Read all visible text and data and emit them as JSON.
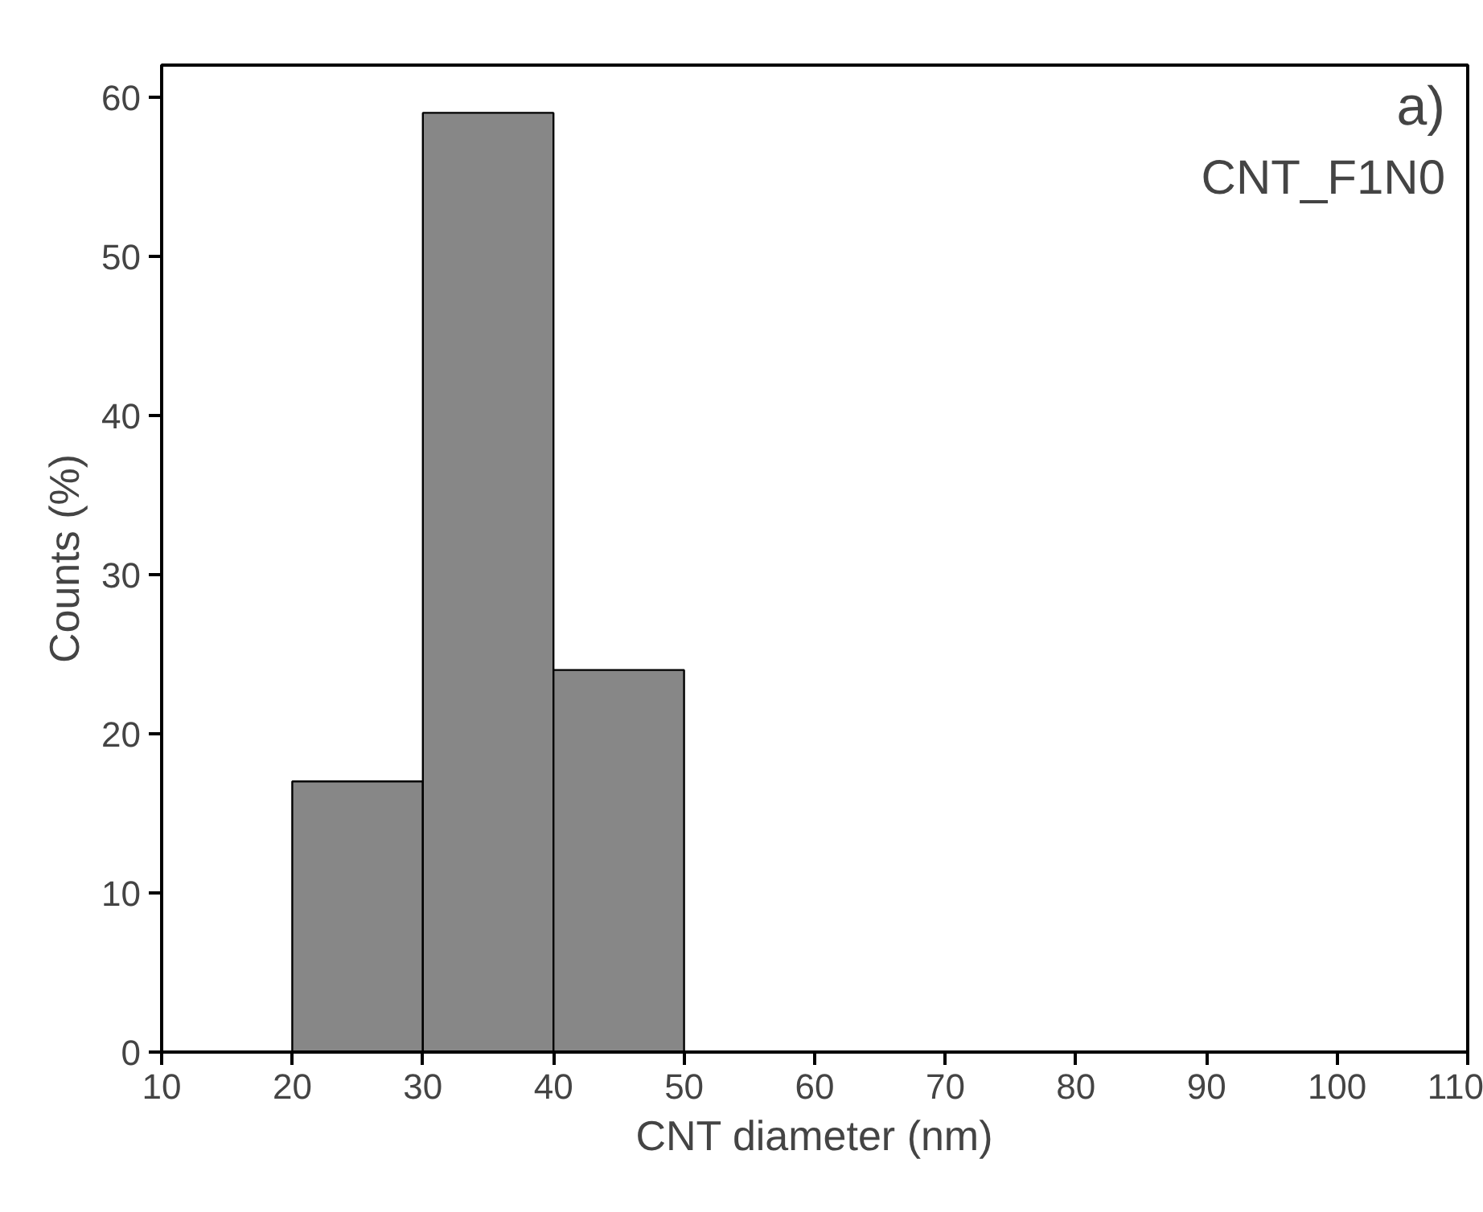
{
  "chart_data": {
    "type": "histogram",
    "xlabel": "CNT diameter (nm)",
    "ylabel": "Counts (%)",
    "annotations": [
      "a)",
      "CNT_F1N0"
    ],
    "bins": [
      20,
      30,
      40,
      50
    ],
    "values": [
      17,
      59,
      24
    ],
    "color": "#878787",
    "xlim": [
      10,
      110
    ],
    "xticks": [
      10,
      20,
      30,
      40,
      50,
      60,
      70,
      80,
      90,
      100,
      110
    ],
    "ylim": [
      0,
      62
    ],
    "yticks": [
      0,
      10,
      20,
      30,
      40,
      50,
      60
    ],
    "grid": false
  }
}
